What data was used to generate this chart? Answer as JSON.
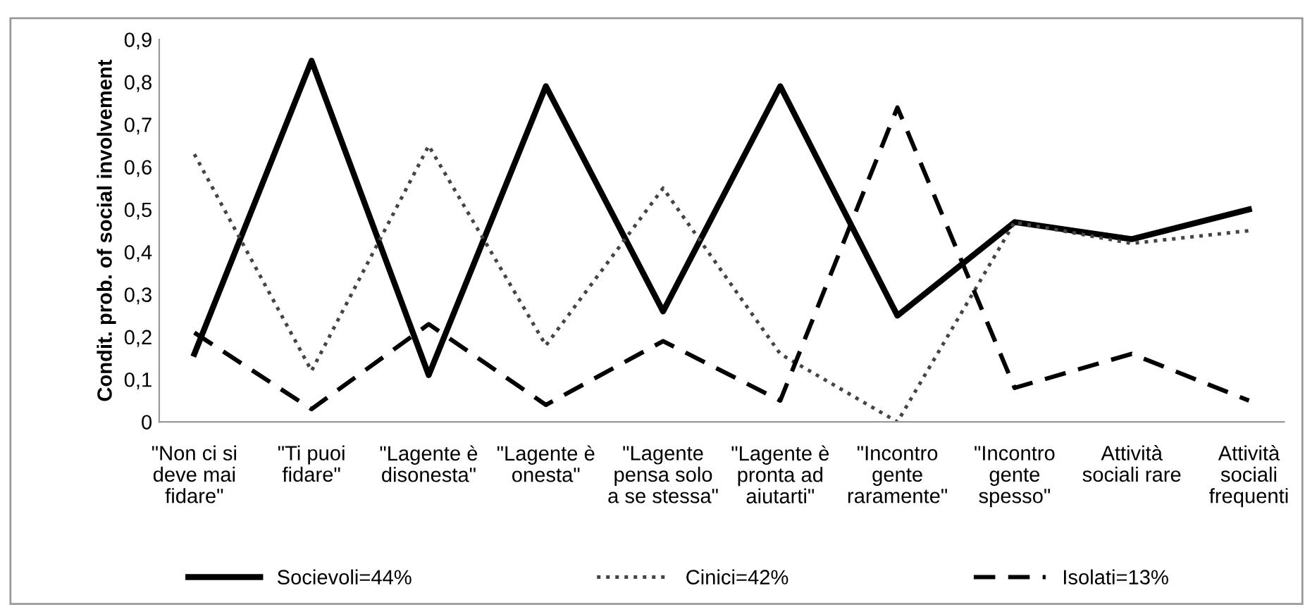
{
  "chart_data": {
    "type": "line",
    "ylabel": "Condit. prob. of social involvement",
    "categories": [
      "\"Non ci si\ndeve mai\nfidare\"",
      "\"Ti puoi\nfidare\"",
      "\"Lagente è\ndisonesta\"",
      "\"Lagente è\nonesta\"",
      "\"Lagente\npensa solo\na se stessa\"",
      "\"Lagente è\npronta ad\naiutarti\"",
      "\"Incontro\ngente\nraramente\"",
      "\"Incontro\ngente\nspesso\"",
      "Attività\nsociali rare",
      "Attività\nsociali\nfrequenti"
    ],
    "series": [
      {
        "name": "Socievoli=44%",
        "color": "#000000",
        "line_style": "solid",
        "values": [
          0.16,
          0.85,
          0.11,
          0.79,
          0.26,
          0.79,
          0.25,
          0.47,
          0.43,
          0.5
        ]
      },
      {
        "name": "Cinici=42%",
        "color": "#444444",
        "line_style": "dotted",
        "values": [
          0.63,
          0.12,
          0.65,
          0.18,
          0.55,
          0.16,
          0.0,
          0.47,
          0.42,
          0.45
        ]
      },
      {
        "name": "Isolati=13%",
        "color": "#000000",
        "line_style": "dashed",
        "values": [
          0.21,
          0.03,
          0.23,
          0.04,
          0.19,
          0.05,
          0.74,
          0.08,
          0.16,
          0.05
        ]
      }
    ],
    "ylim": [
      0,
      0.9
    ],
    "yticks": [
      {
        "value": 0,
        "label": "0"
      },
      {
        "value": 0.1,
        "label": "0,1"
      },
      {
        "value": 0.2,
        "label": "0,2"
      },
      {
        "value": 0.3,
        "label": "0,3"
      },
      {
        "value": 0.4,
        "label": "0,4"
      },
      {
        "value": 0.5,
        "label": "0,5"
      },
      {
        "value": 0.6,
        "label": "0,6"
      },
      {
        "value": 0.7,
        "label": "0,7"
      },
      {
        "value": 0.8,
        "label": "0,8"
      },
      {
        "value": 0.9,
        "label": "0,9"
      }
    ],
    "grid": false,
    "legend": "bottom",
    "marker": "none"
  }
}
